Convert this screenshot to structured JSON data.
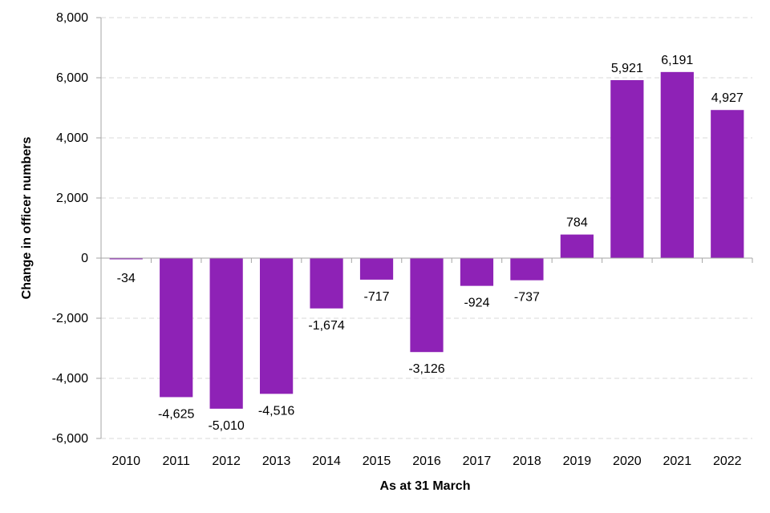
{
  "chart_data": {
    "type": "bar",
    "title": "",
    "xlabel": "As at 31 March",
    "ylabel": "Change in officer numbers",
    "categories": [
      "2010",
      "2011",
      "2012",
      "2013",
      "2014",
      "2015",
      "2016",
      "2017",
      "2018",
      "2019",
      "2020",
      "2021",
      "2022"
    ],
    "values": [
      -34,
      -4625,
      -5010,
      -4516,
      -1674,
      -717,
      -3126,
      -924,
      -737,
      784,
      5921,
      6191,
      4927
    ],
    "data_labels": [
      "-34",
      "-4,625",
      "-5,010",
      "-4,516",
      "-1,674",
      "-717",
      "-3,126",
      "-924",
      "-737",
      "784",
      "5,921",
      "6,191",
      "4,927"
    ],
    "ylim": [
      -6000,
      8000
    ],
    "yticks": [
      -6000,
      -4000,
      -2000,
      0,
      2000,
      4000,
      6000,
      8000
    ],
    "ytick_labels": [
      "-6,000",
      "-4,000",
      "-2,000",
      "0",
      "2,000",
      "4,000",
      "6,000",
      "8,000"
    ],
    "grid": true,
    "legend": "none",
    "bar_color": "#8e22b6"
  }
}
